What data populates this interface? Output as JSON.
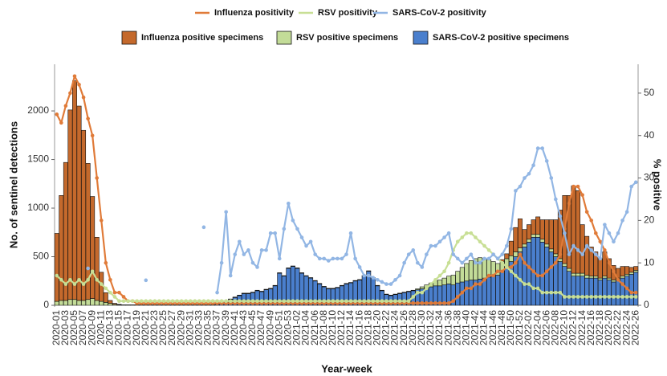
{
  "chart_data": {
    "type": "bar",
    "x_label": "Year-week",
    "y_label": "No. of sentinel detections",
    "y2_label": "% positive",
    "ylim": [
      0,
      2480
    ],
    "yticks": [
      0,
      500,
      1000,
      1500,
      2000
    ],
    "y2lim": [
      0,
      56.8
    ],
    "y2ticks": [
      0,
      10,
      20,
      30,
      40,
      50
    ],
    "grid": false,
    "stacked": true,
    "categories": [
      "2020-01",
      null,
      "2020-03",
      null,
      "2020-05",
      null,
      "2020-07",
      null,
      "2020-09",
      null,
      "2020-11",
      null,
      "2020-13",
      null,
      "2020-15",
      null,
      "2020-17",
      null,
      "2020-19",
      null,
      "2020-21",
      null,
      "2020-23",
      null,
      "2020-25",
      null,
      "2020-27",
      null,
      "2020-29",
      null,
      "2020-31",
      null,
      "2020-33",
      null,
      "2020-35",
      null,
      "2020-37",
      null,
      "2020-39",
      null,
      "2020-41",
      null,
      "2020-43",
      null,
      "2020-45",
      null,
      "2020-47",
      null,
      "2020-49",
      null,
      "2020-51",
      null,
      "2020-53",
      null,
      "2021-02",
      null,
      "2021-04",
      null,
      "2021-06",
      null,
      "2021-08",
      null,
      "2021-10",
      null,
      "2021-12",
      null,
      "2021-14",
      null,
      "2021-16",
      null,
      "2021-18",
      null,
      "2021-20",
      null,
      "2021-22",
      null,
      "2021-24",
      null,
      "2021-26",
      null,
      "2021-28",
      null,
      "2021-30",
      null,
      "2021-32",
      null,
      "2021-34",
      null,
      "2021-36",
      null,
      "2021-38",
      null,
      "2021-40",
      null,
      "2021-42",
      null,
      "2021-44",
      null,
      "2021-46",
      null,
      "2021-48",
      null,
      "2021-50",
      null,
      "2021-52",
      null,
      "2022-02",
      null,
      "2022-04",
      null,
      "2022-06",
      null,
      "2022-08",
      null,
      "2022-10",
      null,
      "2022-12",
      null,
      "2022-14",
      null,
      "2022-16",
      null,
      "2022-18",
      null,
      "2022-20",
      null,
      "2022-22",
      null,
      "2022-24",
      null,
      "2022-26"
    ],
    "series": [
      {
        "name": "Influenza positivity",
        "type": "line",
        "axis": "y2",
        "color": "#e07b39",
        "values": [
          45,
          43,
          47,
          50,
          54,
          52,
          49,
          44,
          40,
          30,
          20,
          10,
          6,
          3,
          3,
          2,
          1,
          1,
          0.5,
          0.5,
          0.5,
          0.5,
          0.5,
          0.5,
          0.5,
          0.5,
          0.5,
          0.5,
          0.5,
          0.5,
          0.5,
          0.5,
          0.5,
          0.5,
          0.5,
          0.5,
          0.5,
          0.5,
          0.5,
          0.5,
          0.5,
          0.5,
          0.5,
          0.5,
          0.5,
          0.5,
          0.5,
          0.5,
          0.5,
          0.5,
          0.5,
          0.5,
          0.5,
          0.5,
          0.5,
          0.5,
          0.5,
          0.5,
          0.5,
          0.5,
          0.5,
          0.5,
          0.5,
          0.5,
          0.5,
          0.5,
          0.5,
          0.5,
          0.5,
          0.5,
          0.5,
          0.5,
          0.5,
          0.5,
          0.5,
          0.5,
          0.5,
          0.5,
          0.5,
          0.5,
          0.5,
          0.5,
          0.5,
          0.5,
          0.5,
          0.5,
          0.5,
          0.5,
          0.5,
          1,
          2,
          3,
          4,
          4,
          5,
          5,
          6,
          7,
          7,
          8,
          8,
          9,
          9,
          10,
          12,
          10,
          9,
          8,
          7,
          7,
          8,
          9,
          10,
          12,
          18,
          24,
          28,
          28,
          26,
          22,
          20,
          17,
          15,
          13,
          10,
          8,
          6,
          5,
          4,
          3,
          3
        ]
      },
      {
        "name": "RSV positivity",
        "type": "line",
        "axis": "y2",
        "color": "#c8df95",
        "values": [
          7,
          6,
          5,
          6,
          5,
          6,
          5,
          6,
          8,
          6,
          5,
          4,
          3,
          2,
          1,
          1,
          1,
          1,
          1,
          1,
          1,
          1,
          1,
          1,
          1,
          1,
          1,
          1,
          1,
          1,
          1,
          1,
          1,
          1,
          1,
          1,
          1,
          1,
          1,
          1,
          1,
          1,
          1,
          1,
          1,
          1,
          1,
          1,
          1,
          1,
          1,
          1,
          1,
          1,
          1,
          1,
          1,
          1,
          1,
          1,
          1,
          1,
          1,
          1,
          1,
          1,
          1,
          1,
          1,
          1,
          1,
          1,
          1,
          1,
          1,
          1,
          1,
          1,
          1,
          1,
          2,
          3,
          3,
          4,
          5,
          6,
          7,
          8,
          10,
          13,
          15,
          16,
          17,
          17,
          16,
          15,
          14,
          13,
          12,
          11,
          10,
          9,
          8,
          7,
          6,
          5,
          5,
          4,
          4,
          3,
          3,
          3,
          3,
          3,
          2,
          2,
          2,
          2,
          2,
          2,
          2,
          2,
          2,
          2,
          2,
          2,
          2,
          2,
          2,
          2,
          2
        ]
      },
      {
        "name": "SARS-CoV-2 positivity",
        "type": "line",
        "axis": "y2",
        "color": "#92b6e4",
        "values": [
          null,
          null,
          null,
          null,
          null,
          null,
          null,
          8.7,
          null,
          null,
          null,
          null,
          null,
          null,
          null,
          null,
          null,
          null,
          null,
          null,
          5.9,
          null,
          null,
          null,
          null,
          null,
          null,
          null,
          null,
          null,
          null,
          null,
          null,
          18.4,
          null,
          null,
          3,
          10,
          22,
          7,
          12,
          15,
          12,
          13,
          10,
          9,
          13,
          13,
          17,
          17,
          11,
          18,
          24,
          20,
          18,
          16,
          14,
          15,
          12,
          11,
          11,
          10.5,
          11,
          11,
          11,
          12,
          17,
          11,
          9,
          7,
          7,
          6.5,
          6,
          5.5,
          5,
          5,
          6,
          7,
          10,
          12,
          13,
          10,
          9,
          12,
          14,
          14,
          15,
          16,
          17,
          12,
          11,
          10,
          11,
          12,
          10,
          10,
          11,
          11,
          12,
          11,
          12,
          14,
          18,
          27,
          28,
          30,
          31,
          33,
          37,
          37,
          34,
          30,
          25,
          21,
          17,
          12,
          14,
          13,
          12,
          14,
          13,
          12,
          11,
          19,
          17,
          15,
          17,
          20,
          22,
          28,
          29
        ]
      },
      {
        "name": "Influenza positive specimens",
        "type": "bar",
        "color": "#c4692c",
        "values": [
          700,
          1080,
          1420,
          1950,
          2250,
          2000,
          1750,
          1400,
          1050,
          650,
          300,
          100,
          30,
          10,
          5,
          0,
          0,
          0,
          0,
          0,
          0,
          0,
          0,
          0,
          0,
          0,
          0,
          0,
          0,
          0,
          0,
          0,
          0,
          0,
          0,
          0,
          0,
          0,
          0,
          0,
          0,
          0,
          0,
          0,
          0,
          0,
          0,
          0,
          0,
          0,
          0,
          0,
          0,
          0,
          0,
          0,
          0,
          0,
          0,
          0,
          0,
          0,
          0,
          0,
          0,
          0,
          0,
          0,
          0,
          0,
          0,
          0,
          0,
          0,
          0,
          0,
          0,
          0,
          0,
          0,
          0,
          0,
          0,
          0,
          0,
          0,
          0,
          0,
          0,
          0,
          0,
          0,
          0,
          0,
          0,
          0,
          0,
          0,
          0,
          0,
          20,
          50,
          150,
          250,
          300,
          150,
          150,
          150,
          180,
          200,
          250,
          300,
          350,
          500,
          700,
          750,
          900,
          850,
          500,
          400,
          300,
          250,
          200,
          250,
          200,
          150,
          100,
          100,
          80,
          50,
          40
        ]
      },
      {
        "name": "RSV positive specimens",
        "type": "bar",
        "color": "#c3dc98",
        "values": [
          40,
          50,
          50,
          60,
          60,
          50,
          50,
          60,
          70,
          50,
          40,
          30,
          20,
          10,
          5,
          5,
          5,
          5,
          5,
          5,
          5,
          5,
          5,
          5,
          5,
          5,
          5,
          5,
          5,
          5,
          5,
          5,
          5,
          5,
          5,
          5,
          5,
          5,
          5,
          5,
          5,
          5,
          5,
          5,
          5,
          5,
          5,
          5,
          5,
          5,
          5,
          5,
          5,
          5,
          5,
          5,
          5,
          5,
          5,
          5,
          5,
          5,
          5,
          5,
          5,
          5,
          5,
          5,
          5,
          5,
          5,
          5,
          5,
          5,
          5,
          5,
          5,
          5,
          5,
          5,
          5,
          10,
          20,
          30,
          40,
          50,
          60,
          70,
          80,
          100,
          120,
          150,
          180,
          200,
          220,
          220,
          200,
          180,
          150,
          120,
          100,
          80,
          60,
          50,
          40,
          30,
          30,
          30,
          30,
          30,
          30,
          30,
          30,
          30,
          30,
          30,
          30,
          30,
          30,
          30,
          20,
          20,
          20,
          20,
          20,
          20,
          20,
          20,
          20,
          20,
          20
        ]
      },
      {
        "name": "SARS-CoV-2 positive specimens",
        "type": "bar",
        "color": "#4a7fcd",
        "values": [
          0,
          0,
          0,
          0,
          0,
          0,
          0,
          0,
          0,
          0,
          0,
          0,
          0,
          0,
          0,
          0,
          0,
          0,
          0,
          0,
          0,
          0,
          0,
          0,
          0,
          0,
          0,
          0,
          0,
          0,
          0,
          0,
          0,
          0,
          0,
          0,
          10,
          20,
          40,
          60,
          80,
          100,
          120,
          120,
          130,
          150,
          140,
          160,
          170,
          200,
          330,
          300,
          380,
          400,
          380,
          330,
          300,
          280,
          250,
          220,
          190,
          170,
          170,
          180,
          200,
          220,
          230,
          250,
          260,
          300,
          350,
          280,
          200,
          150,
          110,
          100,
          110,
          120,
          130,
          140,
          150,
          160,
          170,
          180,
          190,
          200,
          200,
          210,
          220,
          210,
          230,
          240,
          250,
          260,
          260,
          270,
          280,
          290,
          300,
          310,
          350,
          400,
          450,
          500,
          550,
          600,
          650,
          700,
          700,
          650,
          600,
          550,
          500,
          450,
          400,
          350,
          300,
          300,
          300,
          280,
          280,
          280,
          260,
          280,
          260,
          240,
          260,
          280,
          300,
          320,
          340
        ]
      }
    ]
  }
}
